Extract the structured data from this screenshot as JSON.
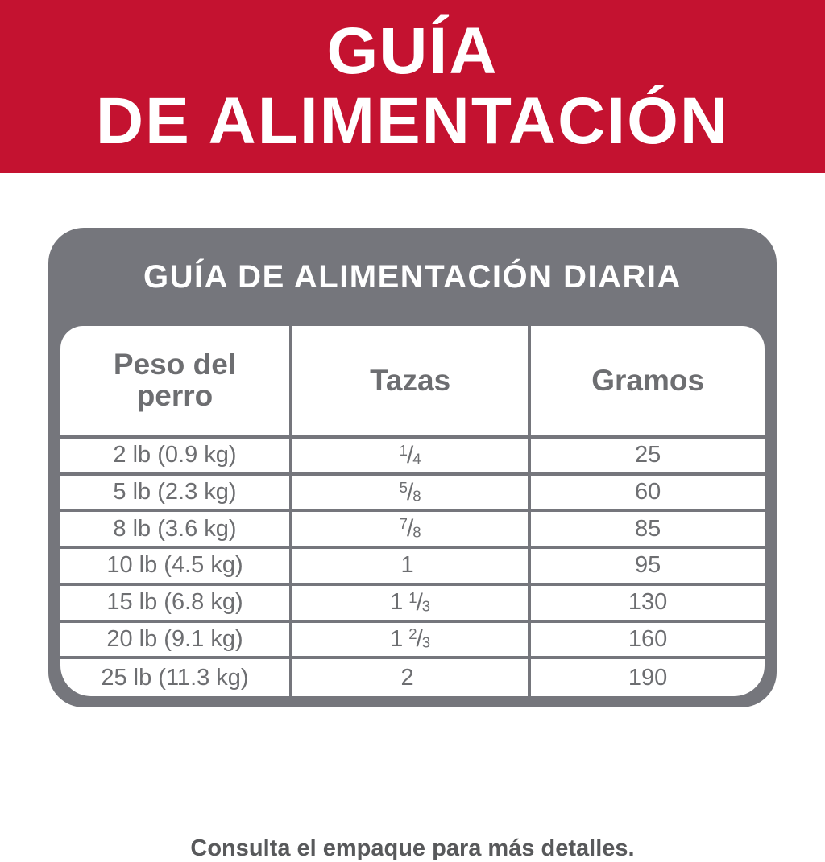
{
  "banner": {
    "title_line1": "GUÍA",
    "title_line2": "DE ALIMENTACIÓN"
  },
  "card": {
    "title": "GUÍA DE ALIMENTACIÓN DIARIA"
  },
  "table": {
    "headers": {
      "weight": "Peso del perro",
      "cups": "Tazas",
      "grams": "Gramos"
    },
    "rows": [
      {
        "weight": "2 lb (0.9 kg)",
        "cups": {
          "whole": "",
          "num": "1",
          "den": "4"
        },
        "grams": "25"
      },
      {
        "weight": "5 lb (2.3 kg)",
        "cups": {
          "whole": "",
          "num": "5",
          "den": "8"
        },
        "grams": "60"
      },
      {
        "weight": "8 lb (3.6 kg)",
        "cups": {
          "whole": "",
          "num": "7",
          "den": "8"
        },
        "grams": "85"
      },
      {
        "weight": "10 lb (4.5 kg)",
        "cups": {
          "whole": "1",
          "num": "",
          "den": ""
        },
        "grams": "95"
      },
      {
        "weight": "15 lb (6.8 kg)",
        "cups": {
          "whole": "1",
          "num": "1",
          "den": "3"
        },
        "grams": "130"
      },
      {
        "weight": "20 lb (9.1 kg)",
        "cups": {
          "whole": "1",
          "num": "2",
          "den": "3"
        },
        "grams": "160"
      },
      {
        "weight": "25 lb (11.3 kg)",
        "cups": {
          "whole": "2",
          "num": "",
          "den": ""
        },
        "grams": "190"
      }
    ]
  },
  "footer": {
    "note": "Consulta el empaque para más detalles."
  },
  "colors": {
    "brand_red": "#c41230",
    "card_gray": "#75767c",
    "table_text_gray": "#6d6e71",
    "footer_text_gray": "#58595b"
  }
}
